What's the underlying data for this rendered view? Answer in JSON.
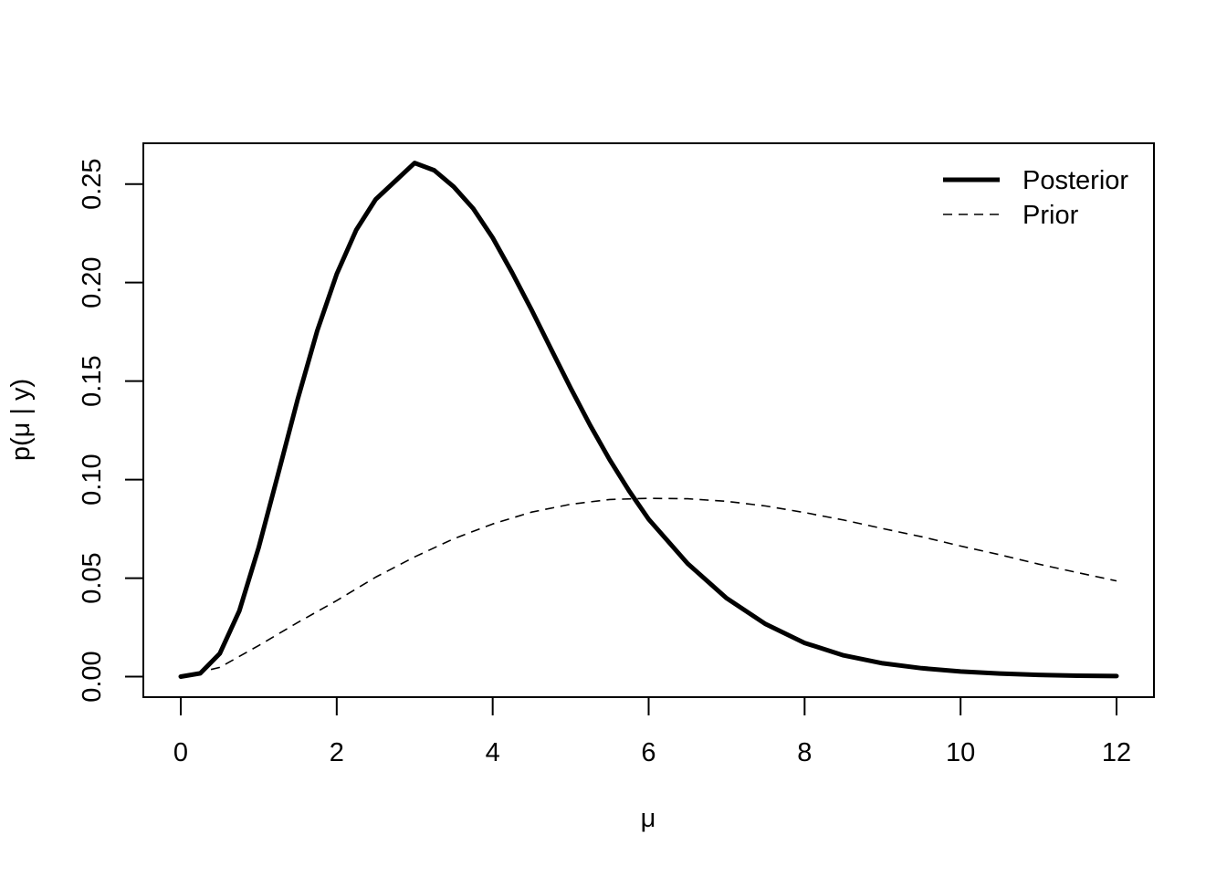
{
  "chart_data": {
    "type": "line",
    "title": "",
    "xlabel": "μ",
    "ylabel": "p(μ | y)",
    "xlim": [
      -0.48,
      12.48
    ],
    "ylim": [
      -0.0104,
      0.2707
    ],
    "x_ticks": [
      0,
      2,
      4,
      6,
      8,
      10,
      12
    ],
    "x_tick_labels": [
      "0",
      "2",
      "4",
      "6",
      "8",
      "10",
      "12"
    ],
    "y_ticks": [
      0.0,
      0.05,
      0.1,
      0.15,
      0.2,
      0.25
    ],
    "y_tick_labels": [
      "0.00",
      "0.05",
      "0.10",
      "0.15",
      "0.20",
      "0.25"
    ],
    "grid": false,
    "legend_position": "top-right",
    "series": [
      {
        "name": "Posterior",
        "style": "solid-thick",
        "color": "#000000",
        "x": [
          0,
          0.25,
          0.5,
          0.75,
          1,
          1.25,
          1.5,
          1.75,
          2,
          2.25,
          2.5,
          2.75,
          3,
          3.25,
          3.5,
          3.75,
          4,
          4.25,
          4.5,
          4.75,
          5,
          5.25,
          5.5,
          5.75,
          6,
          6.5,
          7,
          7.5,
          8,
          8.5,
          9,
          9.5,
          10,
          10.5,
          11,
          11.5,
          12
        ],
        "y": [
          0.0,
          0.0017,
          0.0117,
          0.0333,
          0.0656,
          0.1031,
          0.1408,
          0.1756,
          0.2043,
          0.2267,
          0.2422,
          0.2515,
          0.2607,
          0.257,
          0.2486,
          0.2376,
          0.2227,
          0.205,
          0.186,
          0.1662,
          0.1464,
          0.1276,
          0.1101,
          0.0943,
          0.0799,
          0.0574,
          0.0398,
          0.0267,
          0.0171,
          0.0108,
          0.0068,
          0.0043,
          0.0026,
          0.0016,
          0.0009,
          0.0005,
          0.0003
        ]
      },
      {
        "name": "Prior",
        "style": "dashed",
        "color": "#000000",
        "x": [
          0,
          0.5,
          1,
          1.5,
          2,
          2.5,
          3,
          3.5,
          4,
          4.5,
          5,
          5.5,
          6,
          6.5,
          7,
          7.5,
          8,
          8.5,
          9,
          9.5,
          10,
          10.5,
          11,
          11.5,
          12
        ],
        "y": [
          0.0,
          0.0047,
          0.0158,
          0.0275,
          0.0386,
          0.0505,
          0.0608,
          0.07,
          0.0775,
          0.0835,
          0.0875,
          0.0899,
          0.0905,
          0.0903,
          0.089,
          0.0866,
          0.0833,
          0.0795,
          0.0752,
          0.071,
          0.0663,
          0.0619,
          0.0571,
          0.0528,
          0.0486
        ]
      }
    ]
  }
}
